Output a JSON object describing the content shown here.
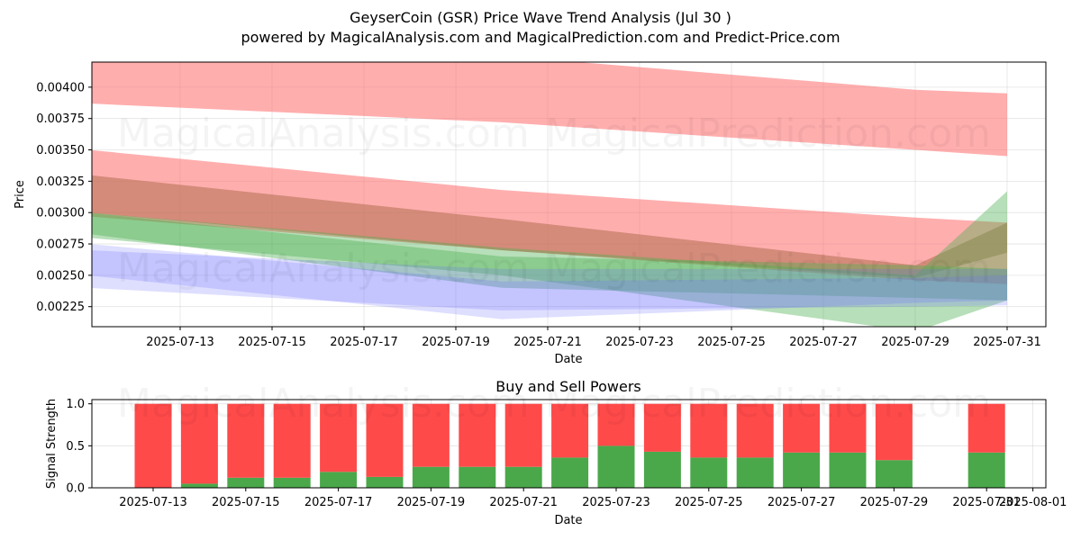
{
  "title_line1": "GeyserCoin (GSR) Price Wave Trend Analysis (Jul 30 )",
  "title_line2": "powered by MagicalAnalysis.com and MagicalPrediction.com and Predict-Price.com",
  "watermarks": [
    "MagicalAnalysis.com",
    "MagicalPrediction.com"
  ],
  "colors": {
    "red_band": "#ff6b6b",
    "green_band": "#4caf50",
    "blue_band": "#6b6bff",
    "sell": "#ff4a4a",
    "buy": "#4aa84a"
  },
  "chart_data": [
    {
      "type": "area",
      "title": "",
      "xlabel": "Date",
      "ylabel": "Price",
      "x_ticks": [
        "2025-07-13",
        "2025-07-15",
        "2025-07-17",
        "2025-07-19",
        "2025-07-21",
        "2025-07-23",
        "2025-07-25",
        "2025-07-27",
        "2025-07-29",
        "2025-07-31"
      ],
      "y_ticks": [
        "0.00225",
        "0.00250",
        "0.00275",
        "0.00300",
        "0.00325",
        "0.00350",
        "0.00375",
        "0.00400"
      ],
      "xlim": [
        "2025-07-11",
        "2025-08-01"
      ],
      "ylim": [
        0.00209,
        0.0042
      ],
      "grid": true,
      "bands": [
        {
          "color": "red",
          "x": [
            "2025-07-11",
            "2025-07-20",
            "2025-07-29",
            "2025-07-31"
          ],
          "upper": [
            0.0043,
            0.00425,
            0.00398,
            0.00395
          ],
          "lower": [
            0.00387,
            0.00372,
            0.0035,
            0.00345
          ]
        },
        {
          "color": "red",
          "x": [
            "2025-07-11",
            "2025-07-20",
            "2025-07-29",
            "2025-07-31"
          ],
          "upper": [
            0.0035,
            0.00318,
            0.00296,
            0.00292
          ],
          "lower": [
            0.00297,
            0.0027,
            0.00246,
            0.00243
          ]
        },
        {
          "color": "brown",
          "x": [
            "2025-07-11",
            "2025-07-20",
            "2025-07-29",
            "2025-07-31"
          ],
          "upper": [
            0.0033,
            0.00295,
            0.00258,
            0.00292
          ],
          "lower": [
            0.003,
            0.0027,
            0.00248,
            0.00268
          ]
        },
        {
          "color": "green",
          "x": [
            "2025-07-11",
            "2025-07-20",
            "2025-07-29",
            "2025-07-31"
          ],
          "upper": [
            0.003,
            0.00272,
            0.0025,
            0.00317
          ],
          "lower": [
            0.0028,
            0.0025,
            0.00205,
            0.0023
          ]
        },
        {
          "color": "green",
          "x": [
            "2025-07-11",
            "2025-07-20",
            "2025-07-29",
            "2025-07-31"
          ],
          "upper": [
            0.003,
            0.00265,
            0.00258,
            0.00255
          ],
          "lower": [
            0.00283,
            0.0024,
            0.00232,
            0.0023
          ]
        },
        {
          "color": "blue",
          "x": [
            "2025-07-11",
            "2025-07-20",
            "2025-07-29",
            "2025-07-31"
          ],
          "upper": [
            0.0027,
            0.00255,
            0.00255,
            0.00255
          ],
          "lower": [
            0.0024,
            0.00222,
            0.00225,
            0.00226
          ]
        },
        {
          "color": "blue",
          "x": [
            "2025-07-11",
            "2025-07-20",
            "2025-07-29",
            "2025-07-31"
          ],
          "upper": [
            0.00275,
            0.00245,
            0.00248,
            0.0025
          ],
          "lower": [
            0.0025,
            0.00215,
            0.00228,
            0.0023
          ]
        }
      ]
    },
    {
      "type": "bar",
      "title": "Buy and Sell Powers",
      "xlabel": "Date",
      "ylabel": "Signal Strength",
      "x_ticks": [
        "2025-07-13",
        "2025-07-15",
        "2025-07-17",
        "2025-07-19",
        "2025-07-21",
        "2025-07-23",
        "2025-07-25",
        "2025-07-27",
        "2025-07-29",
        "2025-07-31",
        "2025-08-01"
      ],
      "y_ticks": [
        "0.0",
        "0.5",
        "1.0"
      ],
      "ylim": [
        0,
        1.05
      ],
      "grid": true,
      "categories": [
        "2025-07-13",
        "2025-07-14",
        "2025-07-15",
        "2025-07-16",
        "2025-07-17",
        "2025-07-18",
        "2025-07-19",
        "2025-07-20",
        "2025-07-21",
        "2025-07-22",
        "2025-07-23",
        "2025-07-24",
        "2025-07-25",
        "2025-07-26",
        "2025-07-27",
        "2025-07-28",
        "2025-07-29",
        "2025-07-31"
      ],
      "series": [
        {
          "name": "Buy",
          "values": [
            0.0,
            0.05,
            0.12,
            0.12,
            0.19,
            0.13,
            0.25,
            0.25,
            0.25,
            0.36,
            0.5,
            0.43,
            0.36,
            0.36,
            0.42,
            0.42,
            0.33,
            0.42
          ]
        },
        {
          "name": "Sell",
          "values": [
            1.0,
            0.95,
            0.88,
            0.88,
            0.81,
            0.87,
            0.75,
            0.75,
            0.75,
            0.64,
            0.5,
            0.57,
            0.64,
            0.64,
            0.58,
            0.58,
            0.67,
            0.58
          ]
        }
      ]
    }
  ]
}
